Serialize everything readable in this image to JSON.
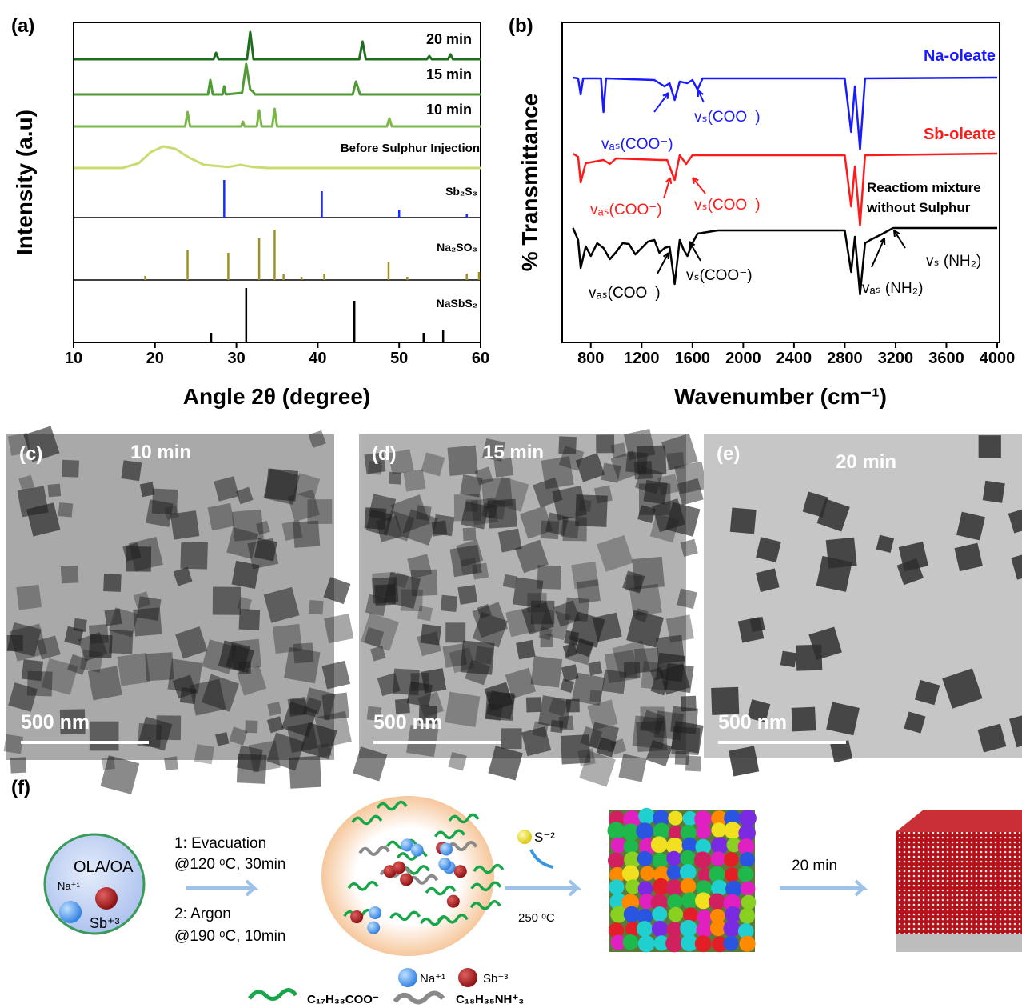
{
  "chart_data": [
    {
      "type": "line",
      "panel": "(a)",
      "xlabel": "Angle 2θ (degree)",
      "ylabel": "Intensity (a.u)",
      "xlim": [
        10,
        60
      ],
      "xticks": [
        10,
        20,
        30,
        40,
        50,
        60
      ],
      "ylim": [
        0,
        100
      ],
      "series": [
        {
          "name": "20 min",
          "color": "#1f6e1f",
          "type": "line",
          "x": [
            10,
            27.2,
            27.5,
            27.8,
            31.3,
            31.7,
            32.1,
            45.1,
            45.5,
            45.9,
            53.4,
            53.7,
            54,
            56,
            56.3,
            56.6,
            60
          ],
          "values": [
            88.5,
            88.5,
            90.5,
            88.5,
            88.5,
            97,
            88.5,
            88.5,
            94,
            88.5,
            88.5,
            89.5,
            88.5,
            88.5,
            90,
            88.5,
            88.5
          ]
        },
        {
          "name": "15 min",
          "color": "#4e9a34",
          "type": "line",
          "x": [
            10,
            26.5,
            26.8,
            27.1,
            28.3,
            28.5,
            28.7,
            30.7,
            31.2,
            31.7,
            32,
            32.3,
            44.3,
            44.7,
            45.2,
            60
          ],
          "values": [
            77.5,
            77.5,
            82,
            77.5,
            77.5,
            80,
            77.5,
            78,
            87,
            79,
            78.5,
            77.5,
            77.5,
            81.5,
            77.5,
            77.5
          ]
        },
        {
          "name": "10 min",
          "color": "#7cb648",
          "type": "line",
          "x": [
            10,
            23.7,
            24,
            24.3,
            30.6,
            30.8,
            31,
            32.5,
            32.8,
            33.1,
            34.4,
            34.7,
            35,
            48.5,
            48.8,
            49.1,
            60
          ],
          "values": [
            67.5,
            67.5,
            72,
            67.5,
            67.5,
            69,
            67.5,
            67.5,
            72.5,
            67.5,
            67.5,
            73,
            67.5,
            67.5,
            70,
            67.5,
            67.5
          ]
        },
        {
          "name": "Before Sulphur Injection",
          "color": "#c9dc72",
          "type": "line",
          "x": [
            10,
            16,
            18,
            19.5,
            21,
            22.5,
            24,
            26,
            29,
            30.5,
            32,
            34,
            60
          ],
          "values": [
            54.5,
            54.5,
            56,
            59.5,
            61.25,
            60.5,
            58,
            55.5,
            54.8,
            55.5,
            54.8,
            54.5,
            54.5
          ]
        },
        {
          "name": "Sb₂S₃",
          "color": "#1a2bff",
          "type": "stick",
          "x": [
            28.5,
            40.5,
            50,
            58.3
          ],
          "values": [
            50.75,
            47.25,
            41.5,
            40
          ]
        },
        {
          "name": "Na₂SO₃",
          "color": "#a09020",
          "type": "stick",
          "x": [
            18.8,
            24,
            29,
            32.8,
            34.7,
            35.8,
            38,
            40.8,
            48.7,
            51,
            58.3,
            59.8
          ],
          "values": [
            20.75,
            29,
            28,
            32.5,
            35.25,
            21.25,
            20.5,
            21.5,
            25,
            20.5,
            21.5,
            22
          ]
        },
        {
          "name": "NaSbS₂",
          "color": "#000000",
          "type": "stick",
          "x": [
            26.9,
            31.2,
            44.5,
            53,
            55.4
          ],
          "values": [
            3,
            17,
            13,
            3,
            4
          ]
        }
      ]
    },
    {
      "type": "line",
      "panel": "(b)",
      "xlabel": "Wavenumber (cm⁻¹)",
      "ylabel": "% Transmittance",
      "xlim": [
        600,
        4000
      ],
      "xticks": [
        800,
        1200,
        1600,
        2000,
        2400,
        2800,
        3200,
        3600,
        4000
      ],
      "ylim": [
        0,
        100
      ],
      "series": [
        {
          "name": "Na-oleate",
          "color": "#1a1aff",
          "type": "line",
          "x": [
            660,
            700,
            720,
            740,
            880,
            900,
            920,
            1300,
            1380,
            1420,
            1460,
            1500,
            1560,
            1600,
            1640,
            1680,
            2800,
            2850,
            2880,
            2920,
            2960,
            4000
          ],
          "values": [
            82.75,
            82.5,
            77.5,
            82.5,
            82.5,
            72,
            82.5,
            82,
            80,
            81,
            75.75,
            81.5,
            81,
            82,
            79,
            82.5,
            82.5,
            65.75,
            80,
            60.25,
            82.5,
            82.75
          ]
        },
        {
          "name": "Sb-oleate",
          "color": "#ff1a1a",
          "type": "line",
          "x": [
            660,
            700,
            720,
            760,
            900,
            950,
            1000,
            1350,
            1400,
            1460,
            1500,
            1550,
            1600,
            2800,
            2850,
            2880,
            2920,
            2960,
            4000
          ],
          "values": [
            59,
            58,
            50,
            56,
            57,
            55.75,
            57.5,
            57,
            57,
            50.75,
            58.5,
            55.75,
            58.5,
            58.5,
            42.5,
            55,
            36.5,
            58.5,
            59
          ]
        },
        {
          "name": "Reactiom mixture without Sulphur",
          "color": "#000000",
          "type": "line",
          "x": [
            660,
            700,
            720,
            760,
            800,
            850,
            900,
            950,
            1000,
            1050,
            1100,
            1150,
            1200,
            1250,
            1300,
            1340,
            1380,
            1420,
            1460,
            1500,
            1530,
            1560,
            1600,
            1640,
            1800,
            2800,
            2850,
            2880,
            2920,
            2960,
            3000,
            3100,
            3180,
            4000
          ],
          "values": [
            35.75,
            32,
            23.25,
            30,
            27,
            31,
            29.5,
            26,
            28.25,
            31,
            30.75,
            27.5,
            29.5,
            31.5,
            32,
            28,
            29.5,
            30,
            18.25,
            32,
            29,
            27,
            31,
            34,
            35,
            35,
            22,
            33,
            15,
            31,
            32,
            34,
            35.75,
            35.75
          ]
        }
      ],
      "annotations": [
        {
          "text": "vₛ(COO⁻)",
          "color": "#1a1aff"
        },
        {
          "text": "vₐₛ(COO⁻)",
          "color": "#1a1aff"
        },
        {
          "text": "vₐₛ(COO⁻)",
          "color": "#ff1a1a"
        },
        {
          "text": "vₛ(COO⁻)",
          "color": "#ff1a1a"
        },
        {
          "text": "vₐₛ(COO⁻)",
          "color": "#000000"
        },
        {
          "text": "vₛ(COO⁻)",
          "color": "#000000"
        },
        {
          "text": "vₛ (NH₂)",
          "color": "#000000"
        },
        {
          "text": "vₐₛ (NH₂)",
          "color": "#000000"
        }
      ]
    }
  ],
  "micrographs": [
    {
      "label": "(c)",
      "time": "10 min",
      "scale": "500 nm"
    },
    {
      "label": "(d)",
      "time": "15 min",
      "scale": "500 nm"
    },
    {
      "label": "(e)",
      "time": "20 min",
      "scale": "500 nm"
    }
  ],
  "scheme": {
    "label": "(f)",
    "solvent": "OLA/OA",
    "na": "Na⁺¹",
    "sb": "Sb⁺³",
    "step1": "1: Evacuation",
    "step1_cond": "@120 ᵒC, 30min",
    "step2": "2: Argon",
    "step2_cond": "@190 ᵒC, 10min",
    "legend_na": "Na⁺¹",
    "legend_sb": "Sb⁺³",
    "sulfur": "S⁻²",
    "temperature": "250 ᵒC",
    "time": "20 min",
    "oleate": "C₁₇H₃₃COO⁻",
    "oleylamine": "C₁₈H₃₅NH⁺₃"
  }
}
